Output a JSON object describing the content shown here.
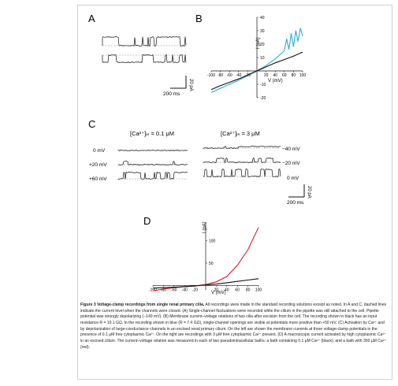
{
  "panels": {
    "A": {
      "label": "A",
      "scalebar_y": "20 pA",
      "scalebar_x": "200 ms"
    },
    "B": {
      "label": "B",
      "yaxis_label": "I (pA)",
      "xaxis_label": "V (mV)"
    },
    "C": {
      "label": "C",
      "left_header": "[Ca²⁺]ᵢₙ = 0.1 μM",
      "right_header": "[Ca²⁺]ᵢₙ = 3 μM",
      "left_voltages": [
        "0 mV",
        "+20 mV",
        "+60 mV"
      ],
      "right_voltages": [
        "−40 mV",
        "−20 mV",
        "0 mV"
      ],
      "scalebar_y": "20 pA",
      "scalebar_x": "200 ms"
    },
    "D": {
      "label": "D",
      "yaxis_label": "I (pA)",
      "xaxis_label": "V (mV)"
    }
  },
  "chart_data": [
    {
      "panel": "B",
      "type": "line",
      "xlabel": "V (mV)",
      "ylabel": "I (pA)",
      "xlim": [
        -100,
        100
      ],
      "ylim": [
        -20,
        40
      ],
      "x_ticks": [
        -100,
        -80,
        -60,
        -40,
        -20,
        20,
        40,
        60,
        80,
        100
      ],
      "y_ticks": [
        -20,
        -10,
        10,
        20,
        30,
        40
      ],
      "series": [
        {
          "color": "#2aaed8",
          "x": [
            -100,
            -80,
            -60,
            -40,
            -20,
            0,
            20,
            40,
            60,
            65,
            70,
            75,
            80,
            85,
            90,
            95,
            100
          ],
          "y": [
            -16,
            -13,
            -10,
            -7,
            -3.5,
            0,
            4,
            9,
            15,
            24,
            16,
            28,
            18,
            30,
            22,
            32,
            26
          ]
        },
        {
          "color": "#111111",
          "x": [
            -100,
            -80,
            -60,
            -40,
            -20,
            0,
            20,
            40,
            60,
            80,
            100
          ],
          "y": [
            -14,
            -11,
            -8.5,
            -6,
            -3,
            0,
            3,
            6,
            8.5,
            11,
            14
          ]
        }
      ]
    },
    {
      "panel": "D",
      "type": "line",
      "xlabel": "V (mV)",
      "ylabel": "I (pA)",
      "xlim": [
        -100,
        100
      ],
      "ylim": [
        -10,
        140
      ],
      "x_ticks": [
        -100,
        -80,
        -60,
        -40,
        -20,
        20,
        40,
        60,
        80,
        100
      ],
      "y_ticks": [
        50,
        100
      ],
      "series": [
        {
          "color": "#d42020",
          "x": [
            -100,
            -80,
            -60,
            -40,
            -20,
            0,
            20,
            40,
            60,
            80,
            100
          ],
          "y": [
            -12,
            -8,
            -5,
            -3,
            -1,
            2,
            8,
            20,
            45,
            80,
            130
          ]
        },
        {
          "color": "#111111",
          "x": [
            -100,
            -80,
            -60,
            -40,
            -20,
            0,
            20,
            40,
            60,
            80,
            100
          ],
          "y": [
            -6,
            -5,
            -4,
            -2.5,
            -1,
            1,
            3,
            6,
            9,
            12,
            15
          ]
        }
      ]
    }
  ],
  "caption": {
    "title": "Figure 3 Voltage-clamp recordings from single renal primary cilia.",
    "body": "All recordings were made in the standard recording solutions except as noted. In A and C, dashed lines indicate the current level when the channels were closed. (A) Single-channel fluctuations were recorded while the cilium in the pipette was still attached to the cell. Pipette potential was strongly depolarizing (−140 mV). (B) Membrane current–voltage relations of two cilia after excision from the cell. The recording shown in black has an input resistance R = 10.1 GΩ. In the recording shown in blue (R = 7.4 GΩ), single-channel openings are visible at potentials more positive than +50 mV. (C) Activation by Ca²⁺ and by depolarization of large-conductance channels in an excised renal primary cilium. On the left are shown the membrane currents at three voltage-clamp potentials in the presence of 0.1 μM free cytoplasmic Ca²⁺. On the right are recordings with 3 μM free cytoplasmic Ca²⁺ present. (D) A macroscopic current activated by high cytoplasmic Ca²⁺ in an excised cilium. The current–voltage relation was measured in each of two pseudointracellular baths: a bath containing 0.1 μM Ca²⁺ (black); and a bath with 300 μM Ca²⁺ (red)."
  }
}
